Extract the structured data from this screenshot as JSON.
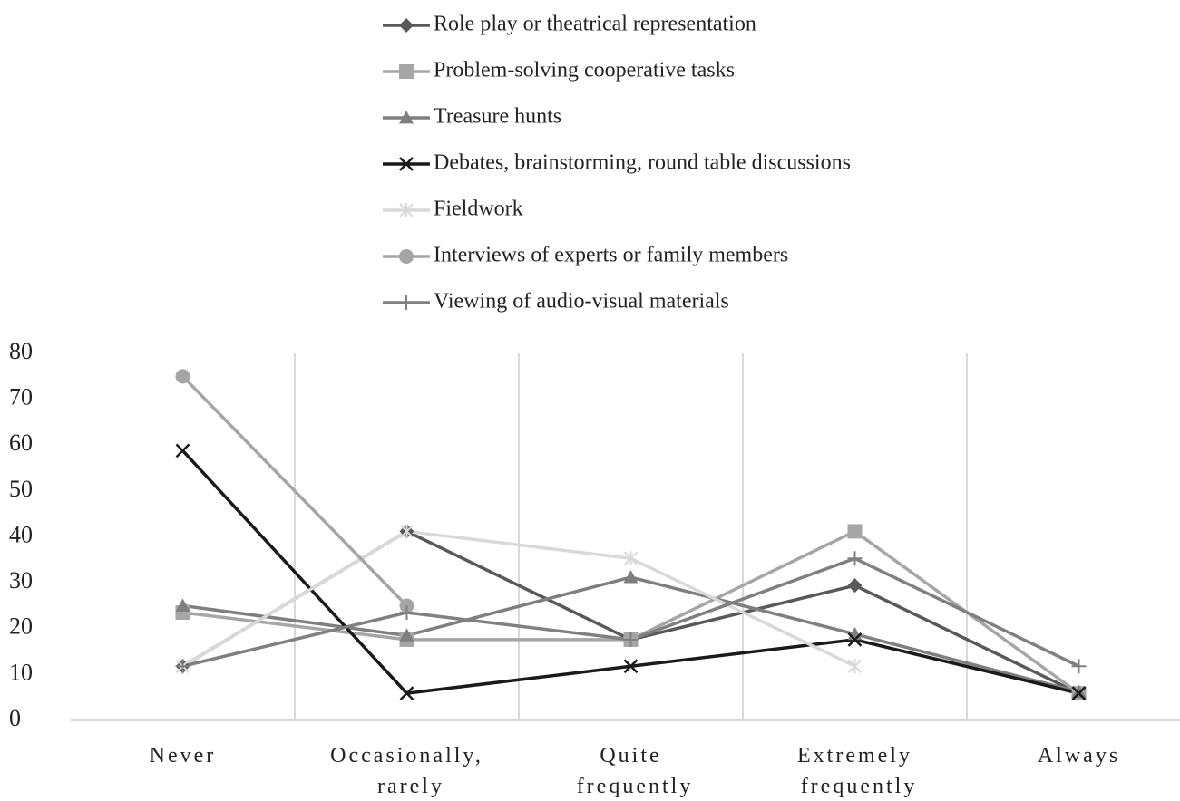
{
  "chart_data": {
    "type": "line",
    "categories": [
      "Never",
      "Occasionally, rarely",
      "Quite frequently",
      "Extremely frequently",
      "Always"
    ],
    "ylim": [
      0,
      80
    ],
    "yticks": [
      0,
      10,
      20,
      30,
      40,
      50,
      60,
      70,
      80
    ],
    "series": [
      {
        "name": "Role play or theatrical representation",
        "color": "#595959",
        "marker": "diamond",
        "values": [
          11.8,
          41.2,
          17.6,
          29.4,
          5.9
        ]
      },
      {
        "name": "Problem-solving cooperative tasks",
        "color": "#a6a6a6",
        "marker": "square",
        "values": [
          23.5,
          17.6,
          17.6,
          41.2,
          5.9
        ]
      },
      {
        "name": "Treasure hunts",
        "color": "#7f7f7f",
        "marker": "triangle",
        "values": [
          25,
          18.5,
          31.2,
          18.8,
          6.2
        ]
      },
      {
        "name": "Debates, brainstorming, round table discussions",
        "color": "#1a1a1a",
        "marker": "x",
        "values": [
          58.8,
          5.9,
          11.8,
          17.6,
          5.9
        ]
      },
      {
        "name": "Fieldwork",
        "color": "#d9d9d9",
        "marker": "star",
        "values": [
          11.8,
          41.2,
          35.3,
          11.8,
          null
        ]
      },
      {
        "name": "Interviews of experts or family members",
        "color": "#a5a5a5",
        "marker": "circle",
        "values": [
          75,
          25,
          null,
          null,
          null
        ]
      },
      {
        "name": "Viewing of audio-visual materials",
        "color": "#808080",
        "marker": "plus",
        "values": [
          11.8,
          23.5,
          17.6,
          35.3,
          11.8
        ]
      }
    ]
  }
}
